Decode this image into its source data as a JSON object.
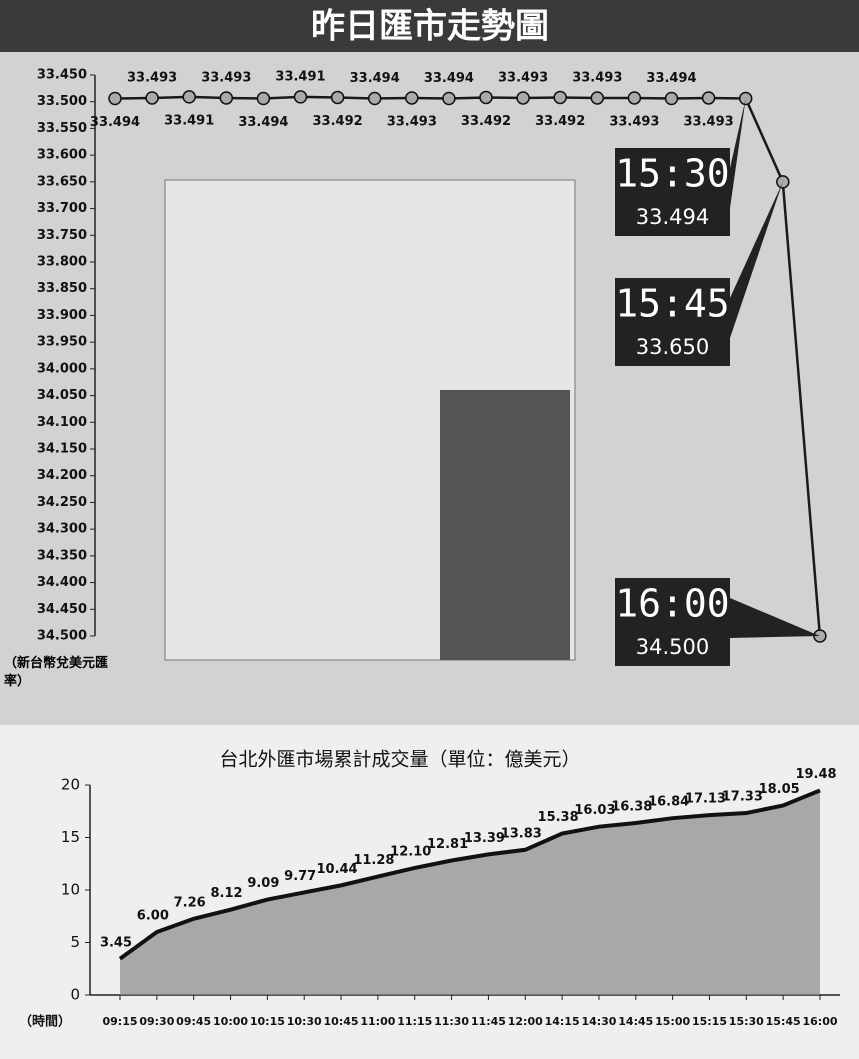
{
  "chart_data": [
    {
      "type": "line",
      "title": "昨日匯市走勢圖",
      "ylabel": "（新台幣兌美元匯率）",
      "categories": [
        null,
        null,
        null,
        null,
        null,
        null,
        null,
        null,
        null,
        null,
        null,
        null,
        null,
        null,
        null,
        null,
        null,
        "15:30",
        "15:45",
        "16:00"
      ],
      "series": [
        {
          "color": "#1a1a1a",
          "values": [
            33.494,
            33.493,
            33.491,
            33.493,
            33.494,
            33.491,
            33.492,
            33.494,
            33.493,
            33.494,
            33.492,
            33.493,
            33.492,
            33.493,
            33.493,
            33.494,
            33.493,
            33.494,
            33.65,
            34.5
          ],
          "value_labels": [
            "33.494",
            "33.493",
            "33.491",
            "33.493",
            "33.494",
            "33.491",
            "33.492",
            "33.494",
            "33.493",
            "33.494",
            "33.492",
            "33.493",
            "33.492",
            "33.493",
            "33.493",
            "33.494",
            "33.493",
            "33.494",
            "33.650",
            "34.500"
          ]
        }
      ],
      "ylim": [
        33.45,
        34.5
      ],
      "y_inverted": true,
      "yticks": [
        {
          "value": 33.45,
          "label": "33.450"
        },
        {
          "value": 33.5,
          "label": "33.500"
        },
        {
          "value": 33.55,
          "label": "33.550"
        },
        {
          "value": 33.6,
          "label": "33.600"
        },
        {
          "value": 33.65,
          "label": "33.650"
        },
        {
          "value": 33.7,
          "label": "33.700"
        },
        {
          "value": 33.75,
          "label": "33.750"
        },
        {
          "value": 33.8,
          "label": "33.800"
        },
        {
          "value": 33.85,
          "label": "33.850"
        },
        {
          "value": 33.9,
          "label": "33.900"
        },
        {
          "value": 33.95,
          "label": "33.950"
        },
        {
          "value": 34.0,
          "label": "34.000"
        },
        {
          "value": 34.05,
          "label": "34.050"
        },
        {
          "value": 34.1,
          "label": "34.100"
        },
        {
          "value": 34.15,
          "label": "34.150"
        },
        {
          "value": 34.2,
          "label": "34.200"
        },
        {
          "value": 34.25,
          "label": "34.250"
        },
        {
          "value": 34.3,
          "label": "34.300"
        },
        {
          "value": 34.35,
          "label": "34.350"
        },
        {
          "value": 34.4,
          "label": "34.400"
        },
        {
          "value": 34.45,
          "label": "34.450"
        },
        {
          "value": 34.5,
          "label": "34.500"
        }
      ]
    },
    {
      "type": "area",
      "title": "台北外匯市場累計成交量（單位：億美元）",
      "xlabel": "（時間）",
      "categories": [
        "09:15",
        "09:30",
        "09:45",
        "10:00",
        "10:15",
        "10:30",
        "10:45",
        "11:00",
        "11:15",
        "11:30",
        "11:45",
        "12:00",
        "14:15",
        "14:30",
        "14:45",
        "15:00",
        "15:15",
        "15:30",
        "15:45",
        "16:00"
      ],
      "series": [
        {
          "color": "#111111",
          "values": [
            3.45,
            6.0,
            7.26,
            8.12,
            9.09,
            9.77,
            10.44,
            11.28,
            12.1,
            12.81,
            13.39,
            13.83,
            15.38,
            16.03,
            16.38,
            16.84,
            17.13,
            17.33,
            18.05,
            19.48
          ],
          "value_labels": [
            "3.45",
            "6.00",
            "7.26",
            "8.12",
            "9.09",
            "9.77",
            "10.44",
            "11.28",
            "12.10",
            "12.81",
            "13.39",
            "13.83",
            "15.38",
            "16.03",
            "16.38",
            "16.84",
            "17.13",
            "17.33",
            "18.05",
            "19.48"
          ]
        }
      ],
      "ylim": [
        0,
        20
      ],
      "yticks": [
        0,
        5,
        10,
        15,
        20
      ]
    }
  ]
}
